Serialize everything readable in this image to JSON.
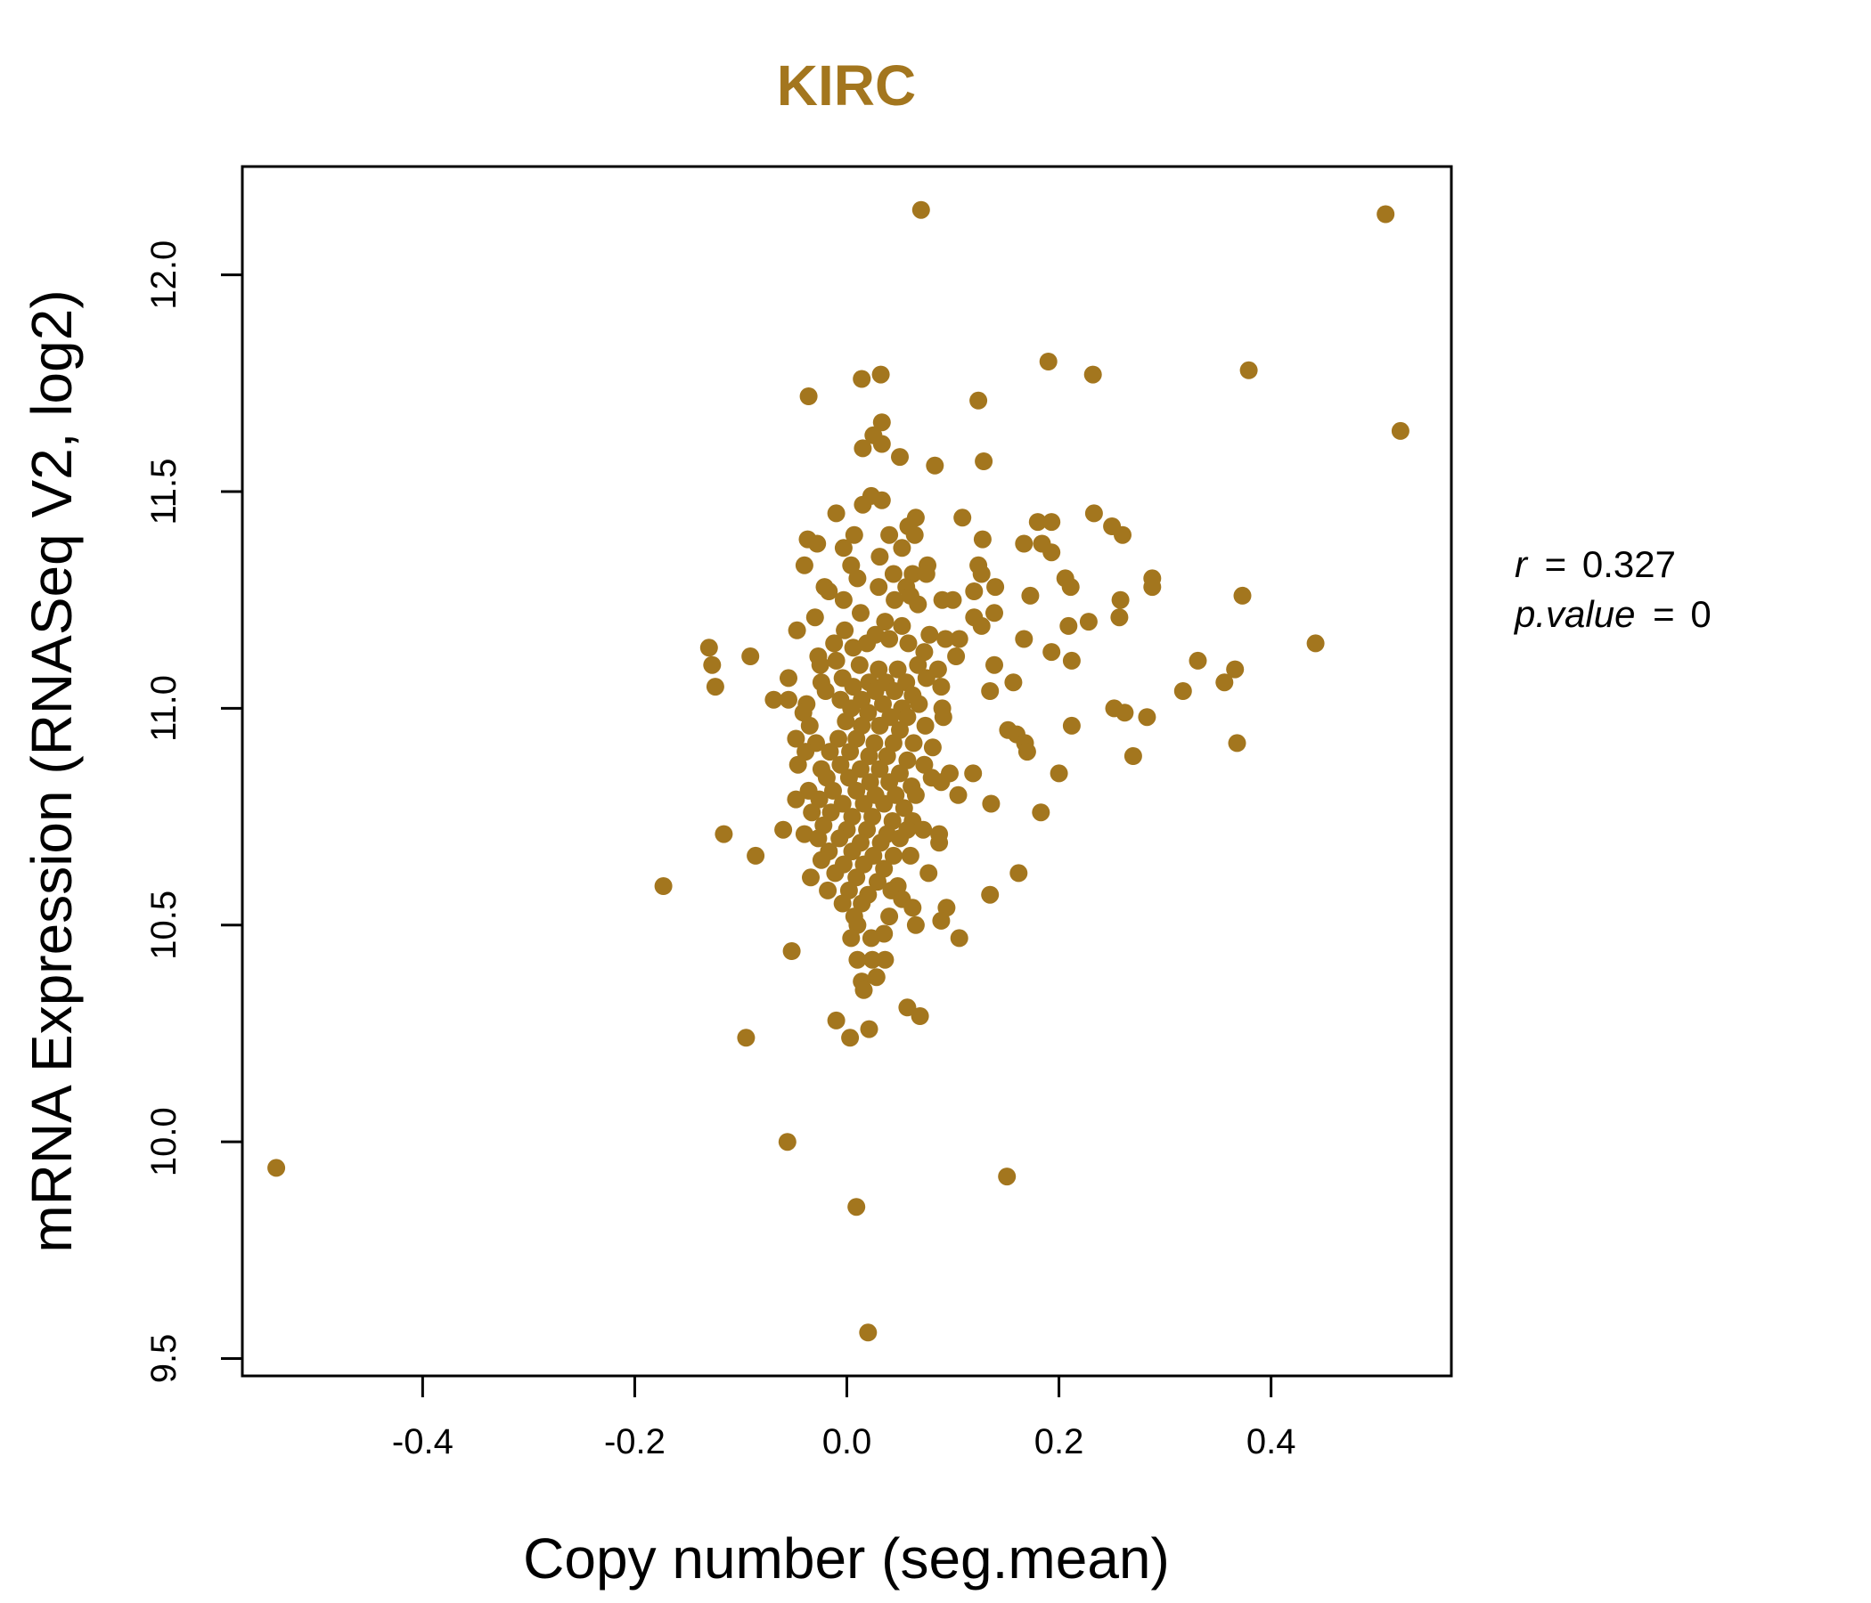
{
  "chart_data": {
    "type": "scatter",
    "title": "KIRC",
    "xlabel": "Copy number (seg.mean)",
    "ylabel": "mRNA Expression (RNASeq V2, log2)",
    "xlim": [
      -0.57,
      0.57
    ],
    "ylim": [
      9.46,
      12.25
    ],
    "x_ticks": [
      -0.4,
      -0.2,
      0.0,
      0.2,
      0.4
    ],
    "x_tick_labels": [
      "-0.4",
      "-0.2",
      "0.0",
      "0.2",
      "0.4"
    ],
    "y_ticks": [
      9.5,
      10.0,
      10.5,
      11.0,
      11.5,
      12.0
    ],
    "y_tick_labels": [
      "9.5",
      "10.0",
      "10.5",
      "11.0",
      "11.5",
      "12.0"
    ],
    "grid": false,
    "legend": "none",
    "point_color": "#A3761E",
    "annotations": {
      "r_label": "r",
      "r_value": "0.327",
      "p_label": "p.value",
      "p_value": "0"
    },
    "points": [
      [
        -0.538,
        9.94
      ],
      [
        0.07,
        12.15
      ],
      [
        0.508,
        12.14
      ],
      [
        0.522,
        11.64
      ],
      [
        0.379,
        11.78
      ],
      [
        0.19,
        11.8
      ],
      [
        0.232,
        11.77
      ],
      [
        0.124,
        11.71
      ],
      [
        -0.036,
        11.72
      ],
      [
        0.032,
        11.77
      ],
      [
        0.014,
        11.76
      ],
      [
        0.033,
        11.66
      ],
      [
        0.025,
        11.63
      ],
      [
        0.033,
        11.61
      ],
      [
        0.015,
        11.6
      ],
      [
        0.05,
        11.58
      ],
      [
        0.083,
        11.56
      ],
      [
        0.129,
        11.57
      ],
      [
        0.023,
        11.49
      ],
      [
        0.033,
        11.48
      ],
      [
        0.015,
        11.47
      ],
      [
        0.065,
        11.44
      ],
      [
        0.109,
        11.44
      ],
      [
        0.233,
        11.45
      ],
      [
        0.25,
        11.42
      ],
      [
        0.26,
        11.4
      ],
      [
        0.18,
        11.43
      ],
      [
        0.193,
        11.43
      ],
      [
        0.167,
        11.38
      ],
      [
        0.128,
        11.39
      ],
      [
        -0.01,
        11.45
      ],
      [
        -0.037,
        11.39
      ],
      [
        -0.028,
        11.38
      ],
      [
        0.007,
        11.4
      ],
      [
        0.04,
        11.4
      ],
      [
        0.058,
        11.42
      ],
      [
        0.064,
        11.4
      ],
      [
        -0.003,
        11.37
      ],
      [
        0.052,
        11.37
      ],
      [
        0.076,
        11.33
      ],
      [
        0.124,
        11.33
      ],
      [
        0.184,
        11.38
      ],
      [
        0.193,
        11.36
      ],
      [
        -0.04,
        11.33
      ],
      [
        0.004,
        11.33
      ],
      [
        0.031,
        11.35
      ],
      [
        0.044,
        11.31
      ],
      [
        0.062,
        11.31
      ],
      [
        0.075,
        11.31
      ],
      [
        0.127,
        11.31
      ],
      [
        0.206,
        11.3
      ],
      [
        0.211,
        11.28
      ],
      [
        0.288,
        11.3
      ],
      [
        0.288,
        11.28
      ],
      [
        -0.021,
        11.28
      ],
      [
        -0.017,
        11.27
      ],
      [
        0.01,
        11.3
      ],
      [
        0.03,
        11.28
      ],
      [
        0.056,
        11.28
      ],
      [
        0.14,
        11.28
      ],
      [
        0.12,
        11.27
      ],
      [
        0.173,
        11.26
      ],
      [
        0.258,
        11.25
      ],
      [
        0.373,
        11.26
      ],
      [
        -0.003,
        11.25
      ],
      [
        0.045,
        11.25
      ],
      [
        0.06,
        11.26
      ],
      [
        0.09,
        11.25
      ],
      [
        0.1,
        11.25
      ],
      [
        0.067,
        11.24
      ],
      [
        0.139,
        11.22
      ],
      [
        0.257,
        11.21
      ],
      [
        0.228,
        11.2
      ],
      [
        0.12,
        11.21
      ],
      [
        0.127,
        11.19
      ],
      [
        0.209,
        11.19
      ],
      [
        -0.03,
        11.21
      ],
      [
        -0.047,
        11.18
      ],
      [
        0.013,
        11.22
      ],
      [
        0.036,
        11.2
      ],
      [
        0.052,
        11.19
      ],
      [
        0.078,
        11.17
      ],
      [
        0.093,
        11.16
      ],
      [
        0.106,
        11.16
      ],
      [
        0.167,
        11.16
      ],
      [
        0.442,
        11.15
      ],
      [
        -0.13,
        11.14
      ],
      [
        -0.091,
        11.12
      ],
      [
        -0.027,
        11.12
      ],
      [
        -0.012,
        11.15
      ],
      [
        -0.002,
        11.18
      ],
      [
        0.006,
        11.14
      ],
      [
        0.019,
        11.15
      ],
      [
        0.027,
        11.17
      ],
      [
        0.04,
        11.16
      ],
      [
        0.058,
        11.15
      ],
      [
        0.073,
        11.13
      ],
      [
        0.103,
        11.12
      ],
      [
        0.193,
        11.13
      ],
      [
        0.212,
        11.11
      ],
      [
        0.331,
        11.11
      ],
      [
        0.366,
        11.09
      ],
      [
        -0.127,
        11.1
      ],
      [
        -0.025,
        11.1
      ],
      [
        -0.01,
        11.11
      ],
      [
        0.012,
        11.1
      ],
      [
        0.03,
        11.09
      ],
      [
        0.048,
        11.09
      ],
      [
        0.067,
        11.1
      ],
      [
        0.086,
        11.09
      ],
      [
        0.139,
        11.1
      ],
      [
        0.157,
        11.06
      ],
      [
        0.356,
        11.06
      ],
      [
        -0.055,
        11.07
      ],
      [
        -0.024,
        11.06
      ],
      [
        -0.004,
        11.07
      ],
      [
        0.021,
        11.06
      ],
      [
        0.037,
        11.06
      ],
      [
        0.056,
        11.06
      ],
      [
        0.075,
        11.07
      ],
      [
        0.089,
        11.05
      ],
      [
        -0.124,
        11.05
      ],
      [
        -0.02,
        11.04
      ],
      [
        0.006,
        11.05
      ],
      [
        0.027,
        11.04
      ],
      [
        0.045,
        11.04
      ],
      [
        0.062,
        11.03
      ],
      [
        0.135,
        11.04
      ],
      [
        0.317,
        11.04
      ],
      [
        -0.069,
        11.02
      ],
      [
        -0.055,
        11.02
      ],
      [
        -0.038,
        11.01
      ],
      [
        -0.006,
        11.02
      ],
      [
        0.014,
        11.02
      ],
      [
        0.034,
        11.01
      ],
      [
        0.052,
        11.0
      ],
      [
        0.068,
        11.01
      ],
      [
        0.09,
        11.0
      ],
      [
        -0.041,
        10.99
      ],
      [
        0.004,
        11.0
      ],
      [
        0.02,
        10.99
      ],
      [
        0.041,
        10.98
      ],
      [
        0.057,
        10.98
      ],
      [
        0.091,
        10.98
      ],
      [
        0.252,
        11.0
      ],
      [
        0.262,
        10.99
      ],
      [
        0.283,
        10.98
      ],
      [
        -0.035,
        10.96
      ],
      [
        -0.001,
        10.97
      ],
      [
        0.014,
        10.96
      ],
      [
        0.031,
        10.96
      ],
      [
        0.05,
        10.95
      ],
      [
        0.074,
        10.96
      ],
      [
        0.152,
        10.95
      ],
      [
        0.16,
        10.94
      ],
      [
        0.212,
        10.96
      ],
      [
        -0.048,
        10.93
      ],
      [
        -0.029,
        10.92
      ],
      [
        -0.008,
        10.93
      ],
      [
        0.009,
        10.93
      ],
      [
        0.026,
        10.92
      ],
      [
        0.044,
        10.92
      ],
      [
        0.063,
        10.92
      ],
      [
        0.081,
        10.91
      ],
      [
        0.168,
        10.92
      ],
      [
        0.17,
        10.9
      ],
      [
        0.368,
        10.92
      ],
      [
        0.27,
        10.89
      ],
      [
        -0.039,
        10.9
      ],
      [
        -0.016,
        10.9
      ],
      [
        0.003,
        10.9
      ],
      [
        0.021,
        10.89
      ],
      [
        0.038,
        10.89
      ],
      [
        0.057,
        10.88
      ],
      [
        0.073,
        10.87
      ],
      [
        -0.046,
        10.87
      ],
      [
        -0.024,
        10.86
      ],
      [
        -0.006,
        10.87
      ],
      [
        0.013,
        10.86
      ],
      [
        0.031,
        10.86
      ],
      [
        0.05,
        10.85
      ],
      [
        0.08,
        10.84
      ],
      [
        0.097,
        10.85
      ],
      [
        0.119,
        10.85
      ],
      [
        0.2,
        10.85
      ],
      [
        -0.019,
        10.84
      ],
      [
        0.002,
        10.84
      ],
      [
        0.022,
        10.83
      ],
      [
        0.04,
        10.83
      ],
      [
        0.061,
        10.82
      ],
      [
        0.089,
        10.83
      ],
      [
        -0.036,
        10.81
      ],
      [
        -0.013,
        10.81
      ],
      [
        0.009,
        10.81
      ],
      [
        0.027,
        10.8
      ],
      [
        0.046,
        10.8
      ],
      [
        0.065,
        10.8
      ],
      [
        0.105,
        10.8
      ],
      [
        -0.048,
        10.79
      ],
      [
        -0.026,
        10.79
      ],
      [
        -0.004,
        10.78
      ],
      [
        0.016,
        10.78
      ],
      [
        0.035,
        10.78
      ],
      [
        0.054,
        10.77
      ],
      [
        0.136,
        10.78
      ],
      [
        0.183,
        10.76
      ],
      [
        -0.033,
        10.76
      ],
      [
        -0.015,
        10.76
      ],
      [
        0.005,
        10.75
      ],
      [
        0.024,
        10.75
      ],
      [
        0.043,
        10.74
      ],
      [
        0.062,
        10.74
      ],
      [
        -0.022,
        10.73
      ],
      [
        0.0,
        10.72
      ],
      [
        0.019,
        10.72
      ],
      [
        0.038,
        10.71
      ],
      [
        0.057,
        10.72
      ],
      [
        0.072,
        10.72
      ],
      [
        -0.06,
        10.72
      ],
      [
        -0.04,
        10.71
      ],
      [
        -0.116,
        10.71
      ],
      [
        -0.027,
        10.7
      ],
      [
        -0.007,
        10.7
      ],
      [
        0.013,
        10.69
      ],
      [
        0.032,
        10.69
      ],
      [
        0.05,
        10.7
      ],
      [
        0.087,
        10.71
      ],
      [
        0.087,
        10.69
      ],
      [
        -0.017,
        10.67
      ],
      [
        0.005,
        10.67
      ],
      [
        0.025,
        10.66
      ],
      [
        0.044,
        10.66
      ],
      [
        0.06,
        10.66
      ],
      [
        -0.086,
        10.66
      ],
      [
        -0.024,
        10.65
      ],
      [
        -0.003,
        10.64
      ],
      [
        0.016,
        10.64
      ],
      [
        0.035,
        10.63
      ],
      [
        0.077,
        10.62
      ],
      [
        0.162,
        10.62
      ],
      [
        -0.034,
        10.61
      ],
      [
        -0.011,
        10.62
      ],
      [
        0.009,
        10.61
      ],
      [
        0.029,
        10.6
      ],
      [
        0.048,
        10.59
      ],
      [
        -0.173,
        10.59
      ],
      [
        -0.018,
        10.58
      ],
      [
        0.002,
        10.58
      ],
      [
        0.02,
        10.57
      ],
      [
        0.042,
        10.58
      ],
      [
        0.052,
        10.56
      ],
      [
        0.135,
        10.57
      ],
      [
        -0.004,
        10.55
      ],
      [
        0.014,
        10.55
      ],
      [
        0.062,
        10.54
      ],
      [
        0.094,
        10.54
      ],
      [
        0.007,
        10.52
      ],
      [
        0.04,
        10.52
      ],
      [
        0.089,
        10.51
      ],
      [
        0.065,
        10.5
      ],
      [
        0.01,
        10.5
      ],
      [
        0.004,
        10.47
      ],
      [
        0.023,
        10.47
      ],
      [
        0.035,
        10.48
      ],
      [
        0.106,
        10.47
      ],
      [
        -0.052,
        10.44
      ],
      [
        0.01,
        10.42
      ],
      [
        0.024,
        10.42
      ],
      [
        0.036,
        10.42
      ],
      [
        0.028,
        10.38
      ],
      [
        0.014,
        10.37
      ],
      [
        0.016,
        10.35
      ],
      [
        0.057,
        10.31
      ],
      [
        0.069,
        10.29
      ],
      [
        -0.01,
        10.28
      ],
      [
        0.021,
        10.26
      ],
      [
        -0.095,
        10.24
      ],
      [
        0.003,
        10.24
      ],
      [
        -0.056,
        10.0
      ],
      [
        0.151,
        9.92
      ],
      [
        0.009,
        9.85
      ],
      [
        0.02,
        9.56
      ]
    ]
  }
}
